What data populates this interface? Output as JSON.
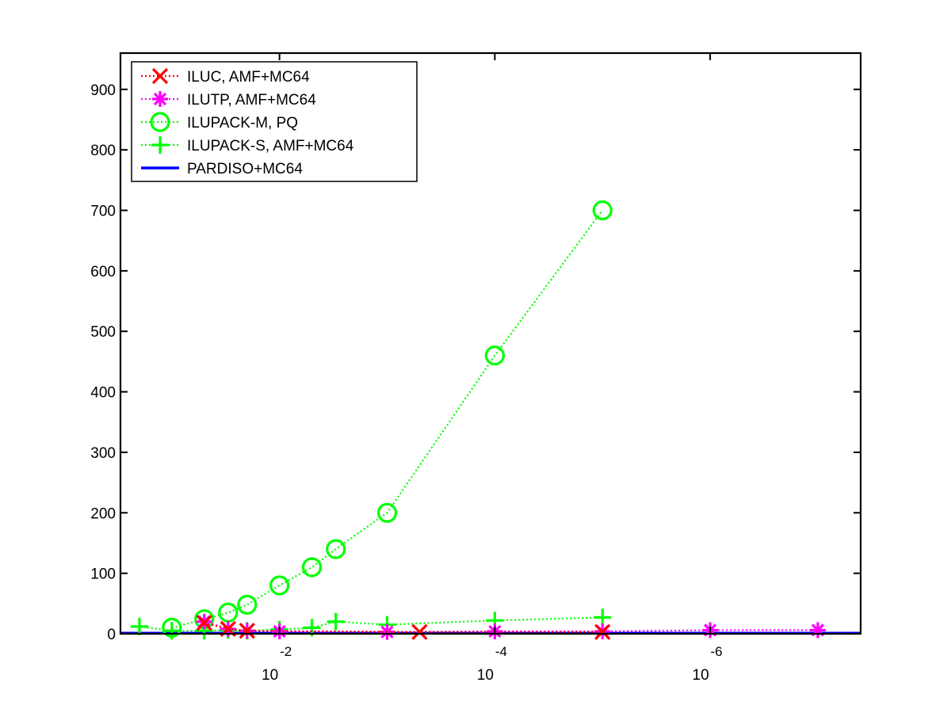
{
  "chart_data": {
    "type": "line",
    "title": "",
    "xlabel": "",
    "ylabel": "",
    "x_scale": "log-reversed",
    "xlim": [
      0.3,
      4e-08
    ],
    "ylim": [
      0,
      960
    ],
    "grid": false,
    "legend_position": "top-left",
    "x_ticks": [
      {
        "base": "10",
        "exponent": "-2",
        "value": 0.01
      },
      {
        "base": "10",
        "exponent": "-4",
        "value": 0.0001
      },
      {
        "base": "10",
        "exponent": "-6",
        "value": 1e-06
      }
    ],
    "y_ticks": [
      "0",
      "100",
      "200",
      "300",
      "400",
      "500",
      "600",
      "700",
      "800",
      "900"
    ],
    "y_tick_values": [
      0,
      100,
      200,
      300,
      400,
      500,
      600,
      700,
      800,
      900
    ],
    "series": [
      {
        "name": "ILUC, AMF+MC64",
        "color": "#ff0000",
        "marker": "x",
        "line_style": "dotted",
        "x": [
          0.05,
          0.03,
          0.02,
          0.0005,
          1e-05
        ],
        "y": [
          18,
          8,
          5,
          3,
          3
        ]
      },
      {
        "name": "ILUTP, AMF+MC64",
        "color": "#ff00ff",
        "marker": "asterisk",
        "line_style": "dotted",
        "x": [
          0.05,
          0.03,
          0.02,
          0.01,
          0.001,
          0.0001,
          1e-05,
          1e-06,
          1e-07
        ],
        "y": [
          20,
          8,
          5,
          4,
          3,
          4,
          4,
          6,
          6
        ]
      },
      {
        "name": "ILUPACK-M, PQ",
        "color": "#00ff00",
        "marker": "circle",
        "line_style": "dotted",
        "x": [
          0.1,
          0.05,
          0.03,
          0.02,
          0.01,
          0.005,
          0.003,
          0.001,
          0.0001,
          1e-05
        ],
        "y": [
          10,
          24,
          35,
          48,
          80,
          110,
          140,
          200,
          460,
          700
        ]
      },
      {
        "name": "ILUPACK-S, AMF+MC64",
        "color": "#00ff00",
        "marker": "plus",
        "line_style": "dotted",
        "x": [
          0.2,
          0.1,
          0.05,
          0.03,
          0.02,
          0.01,
          0.005,
          0.003,
          0.001,
          0.0001,
          1e-05
        ],
        "y": [
          12,
          5,
          5,
          6,
          5,
          7,
          10,
          20,
          15,
          22,
          27
        ]
      },
      {
        "name": "PARDISO+MC64",
        "color": "#0000ff",
        "marker": "none",
        "line_style": "solid",
        "x": [
          0.3,
          4e-08
        ],
        "y": [
          1,
          1
        ]
      }
    ]
  }
}
